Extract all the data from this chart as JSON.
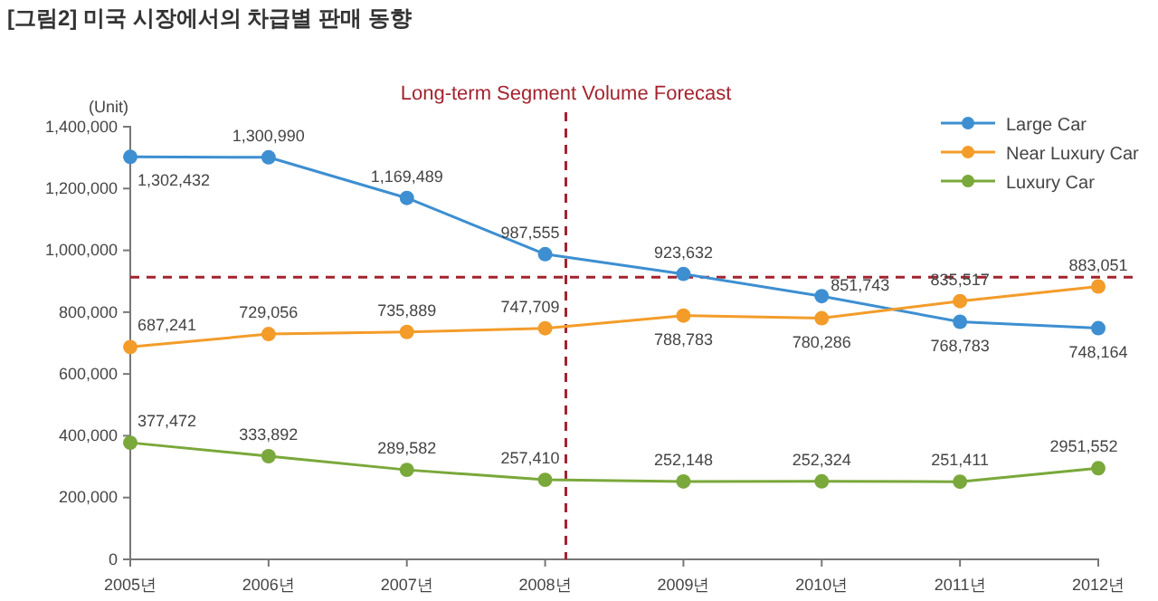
{
  "chart_data": {
    "type": "line",
    "title": "[그림2] 미국 시장에서의 차급별 판매 동향",
    "ylabel": "(Unit)",
    "x": [
      2005,
      2006,
      2007,
      2008,
      2009,
      2010,
      2011,
      2012
    ],
    "xlim": [
      2005,
      2012
    ],
    "xticks": [
      {
        "value": 2005,
        "label": "2005년"
      },
      {
        "value": 2006,
        "label": "2006년"
      },
      {
        "value": 2007,
        "label": "2007년"
      },
      {
        "value": 2008,
        "label": "2008년"
      },
      {
        "value": 2009,
        "label": "2009년"
      },
      {
        "value": 2010,
        "label": "2010년"
      },
      {
        "value": 2011,
        "label": "2011년"
      },
      {
        "value": 2012,
        "label": "2012년"
      }
    ],
    "ylim": [
      0,
      1400000
    ],
    "yticks": [
      {
        "value": 0,
        "label": "0"
      },
      {
        "value": 200000,
        "label": "200,000"
      },
      {
        "value": 400000,
        "label": "400,000"
      },
      {
        "value": 600000,
        "label": "600,000"
      },
      {
        "value": 800000,
        "label": "800,000"
      },
      {
        "value": 1000000,
        "label": "1,000,000"
      },
      {
        "value": 1200000,
        "label": "1,200,000"
      },
      {
        "value": 1400000,
        "label": "1,400,000"
      }
    ],
    "series": [
      {
        "name": "Large Car",
        "color": "#3d8fd1",
        "values": [
          1302432,
          1300990,
          1169489,
          987555,
          923632,
          851743,
          768783,
          748164
        ],
        "value_labels": [
          "1,302,432",
          "1,300,990",
          "1,169,489",
          "987,555",
          "923,632",
          "851,743",
          "768,783",
          "748,164"
        ]
      },
      {
        "name": "Near Luxury Car",
        "color": "#f39c2a",
        "values": [
          687241,
          729056,
          735889,
          747709,
          788783,
          780286,
          835517,
          883051
        ],
        "value_labels": [
          "687,241",
          "729,056",
          "735,889",
          "747,709",
          "788,783",
          "780,286",
          "835,517",
          "883,051"
        ]
      },
      {
        "name": "Luxury Car",
        "color": "#7aa83a",
        "values": [
          377472,
          333892,
          289582,
          257410,
          252148,
          252324,
          251411,
          295000
        ],
        "value_labels": [
          "377,472",
          "333,892",
          "289,582",
          "257,410",
          "252,148",
          "252,324",
          "251,411",
          "2951,552"
        ]
      }
    ],
    "ref_lines": [
      {
        "axis": "x",
        "value": 2008.15,
        "label": "Long-term Segment Volume Forecast",
        "color": "#a3232e",
        "line_style": "dashed"
      },
      {
        "axis": "y",
        "value": 913000,
        "label": null,
        "color": "#a3232e",
        "line_style": "dashed"
      }
    ],
    "marker": "circle",
    "line_style": "solid",
    "grid": false,
    "legend": "top right"
  }
}
